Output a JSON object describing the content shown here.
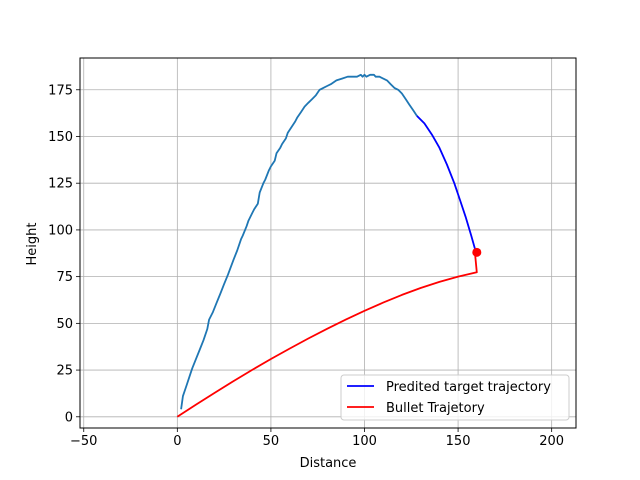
{
  "chart_data": {
    "type": "line",
    "xlabel": "Distance",
    "ylabel": "Height",
    "xlim": [
      -52,
      213
    ],
    "ylim": [
      -6,
      192
    ],
    "xticks": [
      -50,
      0,
      50,
      100,
      150,
      200
    ],
    "yticks": [
      0,
      25,
      50,
      75,
      100,
      125,
      150,
      175
    ],
    "grid": true,
    "legend_position": "lower right",
    "colors": {
      "observed": "#1f77b4",
      "predicted": "#0000ff",
      "bullet": "#ff0000"
    },
    "series": [
      {
        "key": "observed",
        "points": [
          [
            2,
            4
          ],
          [
            3,
            11
          ],
          [
            5,
            17
          ],
          [
            7,
            23
          ],
          [
            8,
            26
          ],
          [
            10,
            31
          ],
          [
            12,
            36
          ],
          [
            14,
            41
          ],
          [
            16,
            47
          ],
          [
            17,
            52
          ],
          [
            18,
            54
          ],
          [
            19,
            56
          ],
          [
            21,
            61
          ],
          [
            23,
            66
          ],
          [
            25,
            71
          ],
          [
            27,
            76
          ],
          [
            30,
            84
          ],
          [
            32,
            89
          ],
          [
            34,
            95
          ],
          [
            35,
            97
          ],
          [
            37,
            102
          ],
          [
            38,
            105
          ],
          [
            40,
            109
          ],
          [
            41,
            111
          ],
          [
            43,
            114
          ],
          [
            44,
            120
          ],
          [
            46,
            125
          ],
          [
            47,
            127
          ],
          [
            49,
            132
          ],
          [
            50,
            134
          ],
          [
            52,
            137
          ],
          [
            53,
            141
          ],
          [
            55,
            144
          ],
          [
            56,
            146
          ],
          [
            58,
            149
          ],
          [
            59,
            152
          ],
          [
            61,
            155
          ],
          [
            63,
            158
          ],
          [
            64,
            160
          ],
          [
            66,
            163
          ],
          [
            68,
            166
          ],
          [
            70,
            168
          ],
          [
            72,
            170
          ],
          [
            74,
            172
          ],
          [
            76,
            175
          ],
          [
            78,
            176
          ],
          [
            80,
            177
          ],
          [
            82,
            178
          ],
          [
            85,
            180
          ],
          [
            88,
            181
          ],
          [
            91,
            182
          ],
          [
            94,
            182
          ],
          [
            96,
            182
          ],
          [
            98,
            183
          ],
          [
            99,
            182
          ],
          [
            100,
            183
          ],
          [
            101,
            182
          ],
          [
            103,
            183
          ],
          [
            105,
            183
          ],
          [
            106,
            182
          ],
          [
            108,
            182
          ],
          [
            110,
            181
          ],
          [
            112,
            180
          ],
          [
            114,
            178
          ],
          [
            116,
            176
          ],
          [
            118,
            175
          ],
          [
            120,
            173
          ],
          [
            122,
            170
          ],
          [
            124,
            167
          ],
          [
            126,
            164
          ],
          [
            128,
            161
          ]
        ]
      },
      {
        "key": "predicted",
        "name": "Predited target trajectory",
        "points": [
          [
            128,
            161
          ],
          [
            132,
            157
          ],
          [
            136,
            151
          ],
          [
            140,
            144
          ],
          [
            144,
            135
          ],
          [
            148,
            125
          ],
          [
            151,
            116
          ],
          [
            154,
            107
          ],
          [
            157,
            97
          ],
          [
            159,
            90
          ]
        ]
      },
      {
        "key": "bullet",
        "name": "Bullet Trajetory",
        "points": [
          [
            0,
            0
          ],
          [
            10,
            6.5
          ],
          [
            20,
            12.9
          ],
          [
            30,
            19.1
          ],
          [
            40,
            25.1
          ],
          [
            50,
            30.9
          ],
          [
            60,
            36.5
          ],
          [
            70,
            41.9
          ],
          [
            80,
            47.1
          ],
          [
            90,
            52.0
          ],
          [
            100,
            56.7
          ],
          [
            110,
            61.1
          ],
          [
            120,
            65.2
          ],
          [
            130,
            68.9
          ],
          [
            140,
            72.2
          ],
          [
            150,
            75.0
          ],
          [
            160,
            77.3
          ],
          [
            159,
            88
          ]
        ]
      }
    ],
    "intercept_point": [
      160,
      88
    ]
  }
}
